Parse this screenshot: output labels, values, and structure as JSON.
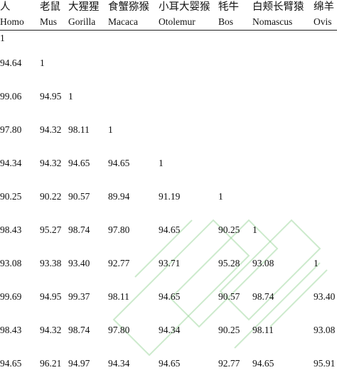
{
  "columns": [
    {
      "cn": "人",
      "latin": "Homo"
    },
    {
      "cn": "老鼠",
      "latin": "Mus"
    },
    {
      "cn": "大猩猩",
      "latin": "Gorilla"
    },
    {
      "cn": "食蟹猕猴",
      "latin": "Macaca"
    },
    {
      "cn": "小耳大婴猴",
      "latin": "Otolemur"
    },
    {
      "cn": "牦牛",
      "latin": "Bos"
    },
    {
      "cn": "白颊长臂猿",
      "latin": "Nomascus"
    },
    {
      "cn": "绵羊",
      "latin": "Ovis"
    }
  ],
  "rows": [
    [
      "1",
      "",
      "",
      "",
      "",
      "",
      "",
      ""
    ],
    [
      "94.64",
      "1",
      "",
      "",
      "",
      "",
      "",
      ""
    ],
    [
      "99.06",
      "94.95",
      "1",
      "",
      "",
      "",
      "",
      ""
    ],
    [
      "97.80",
      "94.32",
      "98.11",
      "1",
      "",
      "",
      "",
      ""
    ],
    [
      "94.34",
      "94.32",
      "94.65",
      "94.65",
      "1",
      "",
      "",
      ""
    ],
    [
      "90.25",
      "90.22",
      "90.57",
      "89.94",
      "91.19",
      "1",
      "",
      ""
    ],
    [
      "98.43",
      "95.27",
      "98.74",
      "97.80",
      "94.65",
      "90.25",
      "1",
      ""
    ],
    [
      "93.08",
      "93.38",
      "93.40",
      "92.77",
      "93.71",
      "95.28",
      "93.08",
      "1"
    ],
    [
      "99.69",
      "94.95",
      "99.37",
      "98.11",
      "94.65",
      "90.57",
      "98.74",
      "93.40"
    ],
    [
      "98.43",
      "94.32",
      "98.74",
      "97.80",
      "94.34",
      "90.25",
      "98.11",
      "93.08"
    ],
    [
      "94.65",
      "96.21",
      "94.97",
      "94.34",
      "94.65",
      "92.77",
      "94.65",
      "95.91"
    ]
  ],
  "colors": {
    "text": "#111111",
    "rule": "#222222",
    "watermark": "#8fd18f"
  }
}
